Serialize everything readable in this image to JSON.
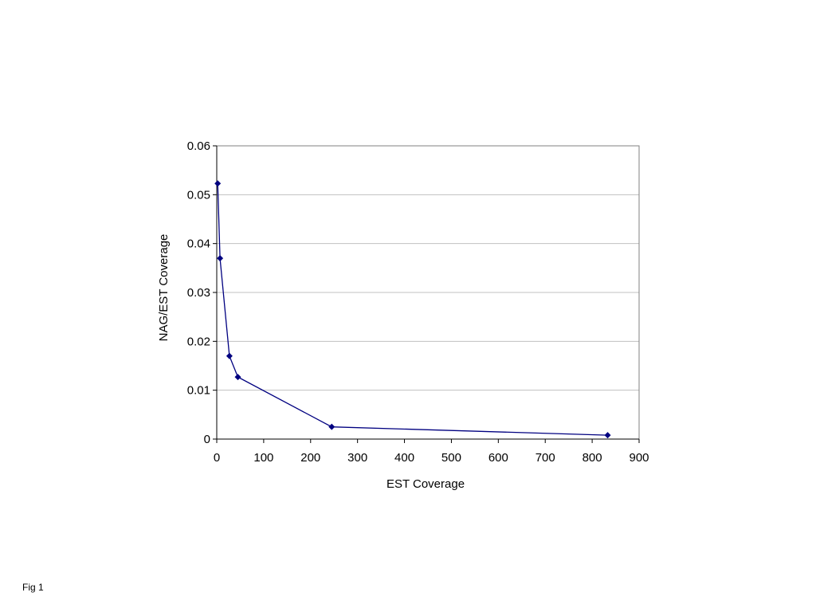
{
  "caption": "Fig 1",
  "chart_data": {
    "type": "line",
    "xlabel": "EST Coverage",
    "ylabel": "NAG/EST Coverage",
    "xlim": [
      0,
      900
    ],
    "ylim": [
      0,
      0.06
    ],
    "x_ticks": [
      "0",
      "100",
      "200",
      "300",
      "400",
      "500",
      "600",
      "700",
      "800",
      "900"
    ],
    "y_ticks": [
      "0",
      "0.01",
      "0.02",
      "0.03",
      "0.04",
      "0.05",
      "0.06"
    ],
    "grid": "horizontal",
    "series": [
      {
        "x": [
          2,
          7,
          27,
          45,
          245,
          833
        ],
        "y": [
          0.0523,
          0.037,
          0.017,
          0.0127,
          0.0025,
          0.0008
        ]
      }
    ],
    "colors": {
      "line": "#000080",
      "marker": "#000080",
      "grid": "#c0c0c0",
      "frame": "#808080"
    }
  }
}
